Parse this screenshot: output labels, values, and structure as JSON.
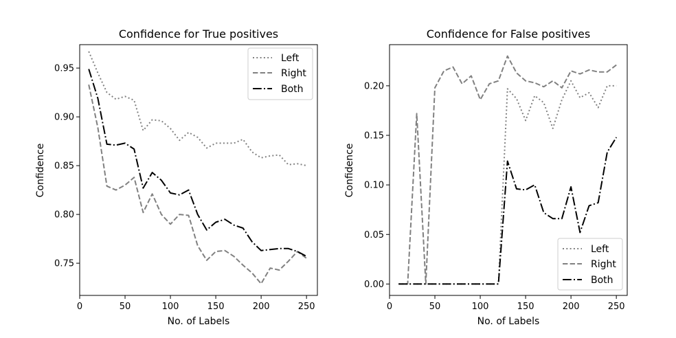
{
  "chart_data": [
    {
      "type": "line",
      "title": "Confidence for True positives",
      "xlabel": "No. of Labels",
      "ylabel": "Confidence",
      "xlim": [
        0,
        262
      ],
      "ylim": [
        0.717,
        0.974
      ],
      "xticks": [
        0,
        50,
        100,
        150,
        200,
        250
      ],
      "xtick_labels": [
        "0",
        "50",
        "100",
        "150",
        "200",
        "250"
      ],
      "yticks": [
        0.75,
        0.8,
        0.85,
        0.9,
        0.95
      ],
      "ytick_labels": [
        "0.75",
        "0.80",
        "0.85",
        "0.90",
        "0.95"
      ],
      "grid": false,
      "legend_position": "top-right",
      "x": [
        10,
        20,
        30,
        40,
        50,
        60,
        70,
        80,
        90,
        100,
        110,
        120,
        130,
        140,
        150,
        160,
        170,
        180,
        190,
        200,
        210,
        220,
        230,
        240,
        250
      ],
      "series": [
        {
          "name": "Left",
          "style": "dotted",
          "color": "#808080",
          "values": [
            0.967,
            0.945,
            0.925,
            0.918,
            0.921,
            0.917,
            0.886,
            0.897,
            0.896,
            0.888,
            0.876,
            0.884,
            0.879,
            0.868,
            0.873,
            0.873,
            0.873,
            0.877,
            0.864,
            0.858,
            0.86,
            0.861,
            0.851,
            0.852,
            0.85
          ]
        },
        {
          "name": "Right",
          "style": "dashed",
          "color": "#808080",
          "values": [
            0.933,
            0.889,
            0.829,
            0.825,
            0.83,
            0.838,
            0.802,
            0.821,
            0.8,
            0.79,
            0.8,
            0.799,
            0.768,
            0.753,
            0.762,
            0.763,
            0.757,
            0.748,
            0.74,
            0.729,
            0.745,
            0.743,
            0.752,
            0.762,
            0.755
          ]
        },
        {
          "name": "Both",
          "style": "dashdot",
          "color": "#000000",
          "values": [
            0.949,
            0.919,
            0.872,
            0.871,
            0.873,
            0.867,
            0.827,
            0.843,
            0.835,
            0.822,
            0.82,
            0.825,
            0.8,
            0.784,
            0.792,
            0.795,
            0.789,
            0.786,
            0.772,
            0.763,
            0.764,
            0.765,
            0.765,
            0.762,
            0.757
          ]
        }
      ]
    },
    {
      "type": "line",
      "title": "Confidence for False positives",
      "xlabel": "No. of Labels",
      "ylabel": "Confidence",
      "xlim": [
        0,
        262
      ],
      "ylim": [
        -0.0115,
        0.2415
      ],
      "xticks": [
        0,
        50,
        100,
        150,
        200,
        250
      ],
      "xtick_labels": [
        "0",
        "50",
        "100",
        "150",
        "200",
        "250"
      ],
      "yticks": [
        0.0,
        0.05,
        0.1,
        0.15,
        0.2
      ],
      "ytick_labels": [
        "0.00",
        "0.05",
        "0.10",
        "0.15",
        "0.20"
      ],
      "grid": false,
      "legend_position": "bottom-right",
      "x": [
        10,
        20,
        30,
        40,
        50,
        60,
        70,
        80,
        90,
        100,
        110,
        120,
        130,
        140,
        150,
        160,
        170,
        180,
        190,
        200,
        210,
        220,
        230,
        240,
        250
      ],
      "series": [
        {
          "name": "Left",
          "style": "dotted",
          "color": "#808080",
          "values": [
            0,
            0,
            0,
            0,
            0,
            0,
            0,
            0,
            0,
            0,
            0,
            0,
            0.197,
            0.187,
            0.165,
            0.19,
            0.183,
            0.157,
            0.186,
            0.205,
            0.188,
            0.193,
            0.178,
            0.2,
            0.2
          ]
        },
        {
          "name": "Right",
          "style": "dashed",
          "color": "#808080",
          "values": [
            0,
            0,
            0.172,
            0,
            0.198,
            0.215,
            0.219,
            0.202,
            0.21,
            0.186,
            0.202,
            0.205,
            0.23,
            0.213,
            0.205,
            0.203,
            0.199,
            0.205,
            0.198,
            0.215,
            0.212,
            0.216,
            0.214,
            0.214,
            0.221
          ]
        },
        {
          "name": "Both",
          "style": "dashdot",
          "color": "#000000",
          "values": [
            0,
            0,
            0,
            0,
            0,
            0,
            0,
            0,
            0,
            0,
            0,
            0,
            0.124,
            0.096,
            0.095,
            0.1,
            0.072,
            0.066,
            0.066,
            0.098,
            0.052,
            0.079,
            0.082,
            0.133,
            0.148
          ]
        }
      ]
    }
  ]
}
